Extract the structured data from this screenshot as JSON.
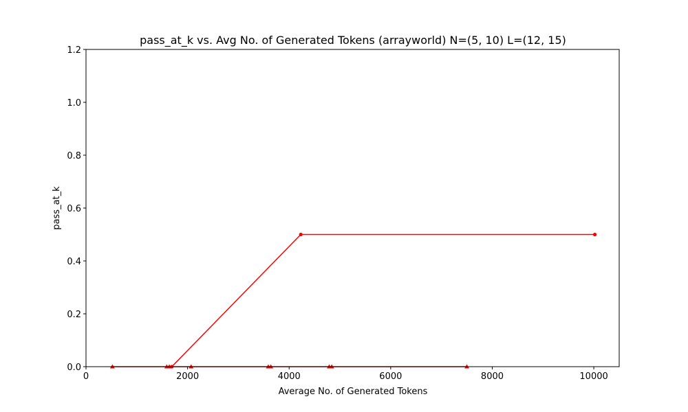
{
  "chart_data": {
    "type": "line",
    "title": "pass_at_k vs. Avg No. of Generated Tokens (arrayworld) N=(5, 10) L=(12, 15)",
    "xlabel": "Average No. of Generated Tokens",
    "ylabel": "pass_at_k",
    "xlim": [
      0,
      10500
    ],
    "ylim": [
      0,
      1.2
    ],
    "xticks": [
      0,
      2000,
      4000,
      6000,
      8000,
      10000
    ],
    "xtick_labels": [
      "0",
      "2000",
      "4000",
      "6000",
      "8000",
      "10000"
    ],
    "yticks": [
      0.0,
      0.2,
      0.4,
      0.6,
      0.8,
      1.0,
      1.2
    ],
    "ytick_labels": [
      "0.0",
      "0.2",
      "0.4",
      "0.6",
      "0.8",
      "1.0",
      "1.2"
    ],
    "grid": false,
    "colors": {
      "series": "#ff0000",
      "axes": "#000000"
    },
    "series": [
      {
        "marker": "dot",
        "points": [
          [
            1690,
            0.0
          ],
          [
            4230,
            0.5
          ],
          [
            10020,
            0.5
          ]
        ]
      },
      {
        "marker": "triangle",
        "points": [
          [
            520,
            0.0
          ],
          [
            1590,
            0.0
          ],
          [
            1640,
            0.0
          ],
          [
            2070,
            0.0
          ],
          [
            3590,
            0.0
          ],
          [
            3640,
            0.0
          ],
          [
            4790,
            0.0
          ],
          [
            4840,
            0.0
          ],
          [
            7500,
            0.0
          ]
        ]
      }
    ]
  }
}
